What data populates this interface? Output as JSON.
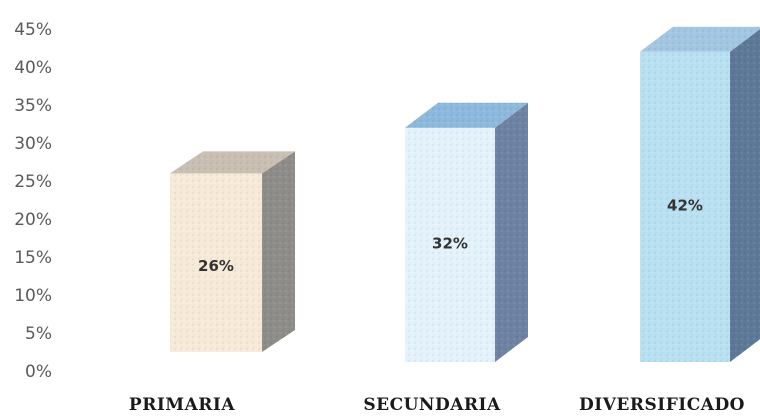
{
  "chart_data": {
    "type": "bar",
    "categories": [
      "PRIMARIA",
      "SECUNDARIA",
      "DIVERSIFICADO"
    ],
    "values": [
      26,
      32,
      42
    ],
    "data_labels": [
      "26%",
      "32%",
      "42%"
    ],
    "ylim": [
      0,
      45
    ],
    "yticks": [
      "0%",
      "5%",
      "10%",
      "15%",
      "20%",
      "25%",
      "30%",
      "35%",
      "40%",
      "45%"
    ],
    "grid": false,
    "style": "3d-column",
    "colors": [
      {
        "front": "#f7ead8",
        "top": "#c9bfb2",
        "side": "#8f8d8a"
      },
      {
        "front": "#e4f3fb",
        "top": "#8db9dc",
        "side": "#6e82a4"
      },
      {
        "front": "#b9e1f2",
        "top": "#a3c7e3",
        "side": "#5e7898"
      }
    ]
  }
}
